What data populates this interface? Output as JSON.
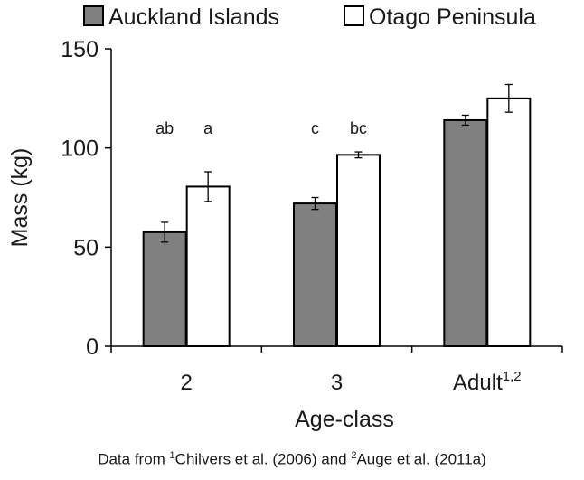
{
  "chart_data": {
    "type": "bar",
    "title": "",
    "xlabel": "Age-class",
    "ylabel": "Mass (kg)",
    "ylim": [
      0,
      150
    ],
    "yticks": [
      0,
      50,
      100,
      150
    ],
    "grid": false,
    "legend_position": "top",
    "categories": [
      "2",
      "3",
      "Adult"
    ],
    "category_superscripts": [
      "",
      "",
      "1,2"
    ],
    "series": [
      {
        "name": "Auckland Islands",
        "color": "#808080",
        "values": [
          57.5,
          72,
          114
        ],
        "errors": [
          5,
          3,
          2.5
        ],
        "letters": [
          "ab",
          "c",
          ""
        ]
      },
      {
        "name": "Otago Peninsula",
        "color": "#ffffff",
        "values": [
          80.5,
          96.5,
          125
        ],
        "errors": [
          7.5,
          1.5,
          7
        ],
        "letters": [
          "a",
          "bc",
          ""
        ]
      }
    ]
  },
  "caption": {
    "prefix": "Data from ",
    "sup1": "1",
    "mid": "Chilvers et al. (2006) and ",
    "sup2": "2",
    "suffix": "Auge et al. (2011a)"
  }
}
